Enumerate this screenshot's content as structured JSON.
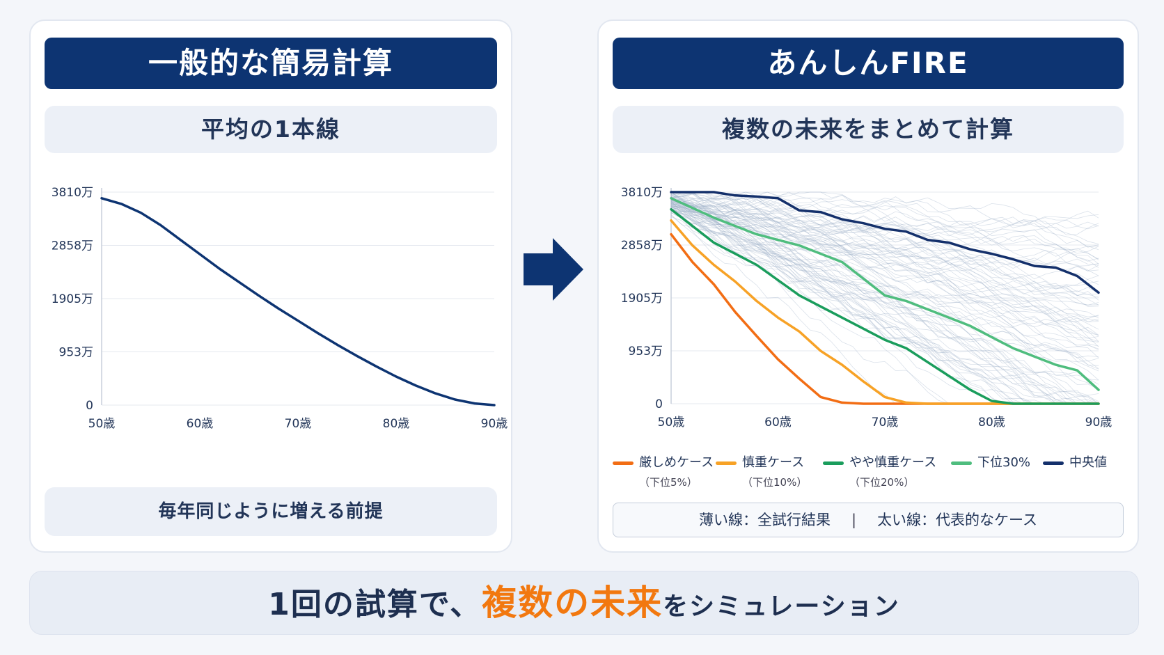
{
  "left": {
    "title": "一般的な簡易計算",
    "subtitle": "平均の1本線",
    "bottom_note": "毎年同じように増える前提"
  },
  "right": {
    "title": "あんしんFIRE",
    "subtitle": "複数の未来をまとめて計算",
    "note_left": "薄い線：全試行結果",
    "note_sep": "|",
    "note_right": "太い線：代表的なケース"
  },
  "banner": {
    "part1": "1回の試算で、",
    "accent": "複数の未来",
    "part2": "をシミュレーション"
  },
  "colors": {
    "navy": "#0d3472",
    "harsh": "#f26d14",
    "careful": "#f7a226",
    "somewhat": "#1a9d5c",
    "p30": "#4fbd7e",
    "median": "#14306b",
    "faint": "#9fb1c9"
  },
  "chart_data": [
    {
      "type": "line",
      "title": "",
      "xlabel": "",
      "ylabel": "",
      "y_ticks": [
        "3810万",
        "2858万",
        "1905万",
        "953万",
        "0"
      ],
      "x_ticks": [
        "50歳",
        "60歳",
        "70歳",
        "80歳",
        "90歳"
      ],
      "xlim": [
        50,
        90
      ],
      "ylim": [
        0,
        3810
      ],
      "grid": true,
      "series": [
        {
          "name": "",
          "x": [
            50,
            52,
            54,
            56,
            58,
            60,
            62,
            64,
            66,
            68,
            70,
            72,
            74,
            76,
            78,
            80,
            82,
            84,
            86,
            88,
            90
          ],
          "values": [
            3700,
            3600,
            3440,
            3220,
            2960,
            2700,
            2440,
            2200,
            1960,
            1730,
            1510,
            1290,
            1080,
            880,
            690,
            510,
            350,
            210,
            100,
            30,
            0
          ]
        }
      ]
    },
    {
      "type": "line",
      "title": "",
      "xlabel": "",
      "ylabel": "",
      "y_ticks": [
        "3810万",
        "2858万",
        "1905万",
        "953万",
        "0"
      ],
      "x_ticks": [
        "50歳",
        "60歳",
        "70歳",
        "80歳",
        "90歳"
      ],
      "xlim": [
        50,
        90
      ],
      "ylim": [
        0,
        3810
      ],
      "grid": true,
      "legend_position": "bottom",
      "faint_series_note": "薄い線：全試行結果",
      "series": [
        {
          "name": "厳しめケース",
          "subname": "（下位5%）",
          "x": [
            50,
            52,
            54,
            56,
            58,
            60,
            62,
            64,
            66,
            68,
            70,
            74,
            80,
            90
          ],
          "values": [
            3050,
            2550,
            2150,
            1650,
            1220,
            800,
            450,
            120,
            20,
            0,
            0,
            0,
            0,
            0
          ]
        },
        {
          "name": "慎重ケース",
          "subname": "（下位10%）",
          "x": [
            50,
            52,
            54,
            56,
            58,
            60,
            62,
            64,
            66,
            68,
            70,
            72,
            74,
            80,
            90
          ],
          "values": [
            3300,
            2850,
            2500,
            2200,
            1850,
            1550,
            1300,
            950,
            700,
            400,
            120,
            20,
            0,
            0,
            0
          ],
          "color_key": "careful"
        },
        {
          "name": "やや慎重ケース",
          "subname": "（下位20%）",
          "x": [
            50,
            54,
            58,
            62,
            66,
            70,
            72,
            74,
            78,
            80,
            82,
            90
          ],
          "values": [
            3500,
            2900,
            2500,
            1950,
            1550,
            1150,
            1000,
            750,
            250,
            50,
            0,
            0
          ]
        },
        {
          "name": "下位30%",
          "x": [
            50,
            54,
            58,
            62,
            66,
            70,
            72,
            74,
            78,
            80,
            82,
            84,
            86,
            88,
            90
          ],
          "values": [
            3700,
            3350,
            3050,
            2850,
            2550,
            1950,
            1850,
            1700,
            1400,
            1200,
            1000,
            850,
            700,
            600,
            250
          ]
        },
        {
          "name": "中央値",
          "x": [
            50,
            52,
            54,
            56,
            58,
            60,
            62,
            64,
            66,
            68,
            70,
            72,
            74,
            76,
            78,
            80,
            82,
            84,
            86,
            88,
            90
          ],
          "values": [
            3810,
            3810,
            3810,
            3750,
            3730,
            3700,
            3480,
            3450,
            3320,
            3250,
            3150,
            3100,
            2950,
            2900,
            2780,
            2700,
            2600,
            2480,
            2450,
            2300,
            2000
          ]
        }
      ]
    }
  ]
}
